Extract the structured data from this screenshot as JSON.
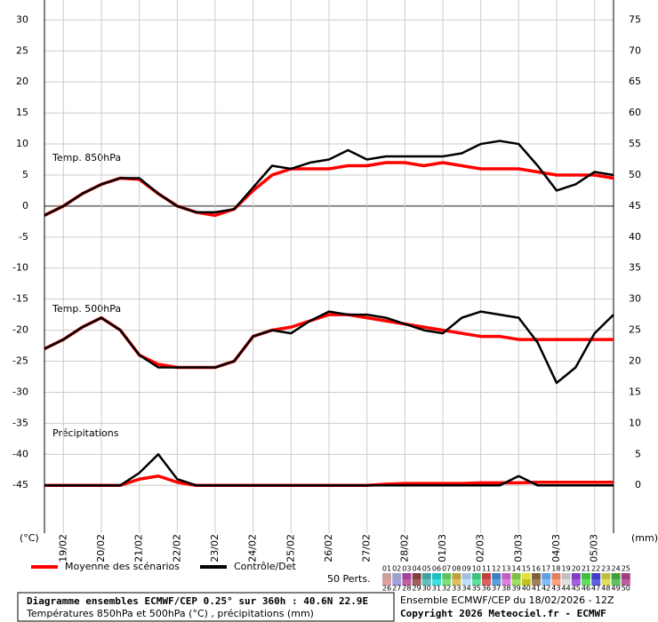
{
  "chart_data": {
    "type": "line",
    "x": [
      0,
      12,
      24,
      36,
      48,
      60,
      72,
      84,
      96,
      108,
      120,
      132,
      144,
      156,
      168,
      180,
      192,
      204,
      216,
      228,
      240,
      252,
      264,
      276,
      288,
      300,
      312,
      324,
      336,
      348,
      360
    ],
    "xlim": [
      0,
      360
    ],
    "xticks": [
      {
        "value": 12,
        "label": "19/02"
      },
      {
        "value": 36,
        "label": "20/02"
      },
      {
        "value": 60,
        "label": "21/02"
      },
      {
        "value": 84,
        "label": "22/02"
      },
      {
        "value": 108,
        "label": "23/02"
      },
      {
        "value": 132,
        "label": "24/02"
      },
      {
        "value": 156,
        "label": "25/02"
      },
      {
        "value": 180,
        "label": "26/02"
      },
      {
        "value": 204,
        "label": "27/02"
      },
      {
        "value": 228,
        "label": "28/02"
      },
      {
        "value": 252,
        "label": "01/03"
      },
      {
        "value": 276,
        "label": "02/03"
      },
      {
        "value": 300,
        "label": "03/03"
      },
      {
        "value": 324,
        "label": "04/03"
      },
      {
        "value": 348,
        "label": "05/03"
      }
    ],
    "ylim": [
      -52.7,
      33.2
    ],
    "yticks": [
      30,
      25,
      20,
      15,
      10,
      5,
      0,
      -5,
      -10,
      -15,
      -20,
      -25,
      -30,
      -35,
      -40,
      -45
    ],
    "y2lim": [
      -7.7,
      78.2
    ],
    "y2ticks": [
      75,
      70,
      65,
      60,
      55,
      50,
      45,
      40,
      35,
      30,
      25,
      20,
      15,
      10,
      5,
      0
    ],
    "ylabel": "(°C)",
    "y2label": "(mm)",
    "grid": true,
    "annotations": [
      "Temp. 850hPa",
      "Temp. 500hPa",
      "Précipitations"
    ],
    "series": [
      {
        "name": "Moyenne des scénarios",
        "color": "#ff0000",
        "values": [
          -1.5,
          0,
          2,
          3.5,
          4.5,
          4.3,
          2,
          0,
          -1,
          -1.5,
          -0.5,
          2.5,
          5,
          6,
          6,
          6,
          6.5,
          6.5,
          7,
          7,
          6.5,
          7,
          6.5,
          6,
          6,
          6,
          5.5,
          5,
          5,
          5,
          4.5
        ]
      },
      {
        "name": "Contrôle/Det",
        "color": "#000000",
        "values": [
          -1.5,
          0,
          2,
          3.5,
          4.5,
          4.5,
          2,
          0,
          -1,
          -1,
          -0.5,
          3,
          6.5,
          6,
          7,
          7.5,
          9,
          7.5,
          8,
          8,
          8,
          8,
          8.5,
          10,
          10.5,
          10,
          6.5,
          2.5,
          3.5,
          5.5,
          5
        ]
      },
      {
        "name": "Moyenne des scénarios",
        "color": "#ff0000",
        "values": [
          -23,
          -21.5,
          -19.5,
          -18,
          -20,
          -24,
          -25.5,
          -26,
          -26,
          -26,
          -25,
          -21,
          -20,
          -19.5,
          -18.5,
          -17.5,
          -17.5,
          -18,
          -18.5,
          -19,
          -19.5,
          -20,
          -20.5,
          -21,
          -21,
          -21.5,
          -21.5,
          -21.5,
          -21.5,
          -21.5,
          -21.5
        ]
      },
      {
        "name": "Contrôle/Det",
        "color": "#000000",
        "values": [
          -23,
          -21.5,
          -19.5,
          -18,
          -20,
          -24,
          -26,
          -26,
          -26,
          -26,
          -25,
          -21,
          -20,
          -20.5,
          -18.5,
          -17,
          -17.5,
          -17.5,
          -18,
          -19,
          -20,
          -20.5,
          -18,
          -17,
          -17.5,
          -18,
          -22,
          -28.5,
          -26,
          -20.5,
          -17.5
        ]
      },
      {
        "name": "Moyenne des scénarios",
        "color": "#ff0000",
        "axis": "y2",
        "values": [
          0,
          0,
          0,
          0,
          0,
          1,
          1.5,
          0.5,
          0,
          0,
          0,
          0,
          0,
          0,
          0,
          0,
          0,
          0,
          0.2,
          0.3,
          0.3,
          0.3,
          0.3,
          0.4,
          0.4,
          0.4,
          0.5,
          0.5,
          0.5,
          0.5,
          0.5
        ]
      },
      {
        "name": "Contrôle/Det",
        "color": "#000000",
        "axis": "y2",
        "values": [
          0,
          0,
          0,
          0,
          0,
          2,
          5,
          1,
          0,
          0,
          0,
          0,
          0,
          0,
          0,
          0,
          0,
          0,
          0,
          0,
          0,
          0,
          0,
          0,
          0,
          1.5,
          0,
          0,
          0,
          0,
          0
        ]
      }
    ],
    "members": {
      "label": "50 Perts.",
      "items": [
        {
          "label": "01",
          "color": "#c8a0a0"
        },
        {
          "label": "02",
          "color": "#a0a0c8"
        },
        {
          "label": "03",
          "color": "#a040a0"
        },
        {
          "label": "04",
          "color": "#804040"
        },
        {
          "label": "05",
          "color": "#40a0a0"
        },
        {
          "label": "06",
          "color": "#20c0c0"
        },
        {
          "label": "07",
          "color": "#60c060"
        },
        {
          "label": "08",
          "color": "#c0a040"
        },
        {
          "label": "09",
          "color": "#a0c0e0"
        },
        {
          "label": "10",
          "color": "#40c080"
        },
        {
          "label": "11",
          "color": "#c04040"
        },
        {
          "label": "12",
          "color": "#4080c0"
        },
        {
          "label": "13",
          "color": "#c060c0"
        },
        {
          "label": "14",
          "color": "#80c040"
        },
        {
          "label": "15",
          "color": "#e0e040"
        },
        {
          "label": "16",
          "color": "#806040"
        },
        {
          "label": "17",
          "color": "#60a0e0"
        },
        {
          "label": "18",
          "color": "#e08060"
        },
        {
          "label": "19",
          "color": "#c0c0c0"
        },
        {
          "label": "20",
          "color": "#8040c0"
        },
        {
          "label": "21",
          "color": "#40c040"
        },
        {
          "label": "22",
          "color": "#4040c0"
        },
        {
          "label": "23",
          "color": "#c0c040"
        },
        {
          "label": "24",
          "color": "#40a040"
        },
        {
          "label": "25",
          "color": "#a04080"
        },
        {
          "label": "26",
          "color": "#e0a0a0"
        },
        {
          "label": "27",
          "color": "#a0a0e0"
        },
        {
          "label": "28",
          "color": "#c060a0"
        },
        {
          "label": "29",
          "color": "#a06060"
        },
        {
          "label": "30",
          "color": "#60c0c0"
        },
        {
          "label": "31",
          "color": "#40e0e0"
        },
        {
          "label": "32",
          "color": "#80e080"
        },
        {
          "label": "33",
          "color": "#e0c060"
        },
        {
          "label": "34",
          "color": "#c0e0ff"
        },
        {
          "label": "35",
          "color": "#60e0a0"
        },
        {
          "label": "36",
          "color": "#e06060"
        },
        {
          "label": "37",
          "color": "#60a0e0"
        },
        {
          "label": "38",
          "color": "#e080e0"
        },
        {
          "label": "39",
          "color": "#a0e060"
        },
        {
          "label": "40",
          "color": "#c0c020"
        },
        {
          "label": "41",
          "color": "#a08060"
        },
        {
          "label": "42",
          "color": "#80c0ff"
        },
        {
          "label": "43",
          "color": "#ffa080"
        },
        {
          "label": "44",
          "color": "#e0e0e0"
        },
        {
          "label": "45",
          "color": "#a060e0"
        },
        {
          "label": "46",
          "color": "#60e060"
        },
        {
          "label": "47",
          "color": "#6060e0"
        },
        {
          "label": "48",
          "color": "#e0e060"
        },
        {
          "label": "49",
          "color": "#60c060"
        },
        {
          "label": "50",
          "color": "#c060a0"
        }
      ]
    },
    "footer": {
      "title": "Diagramme ensembles ECMWF/CEP 0.25° sur 360h : 40.6N 22.9E",
      "subtitle": "Températures 850hPa et 500hPa (°C) , précipitations (mm)",
      "run": "Ensemble ECMWF/CEP du 18/02/2026 - 12Z",
      "copyright": "Copyright 2026 Meteociel.fr - ECMWF"
    }
  }
}
